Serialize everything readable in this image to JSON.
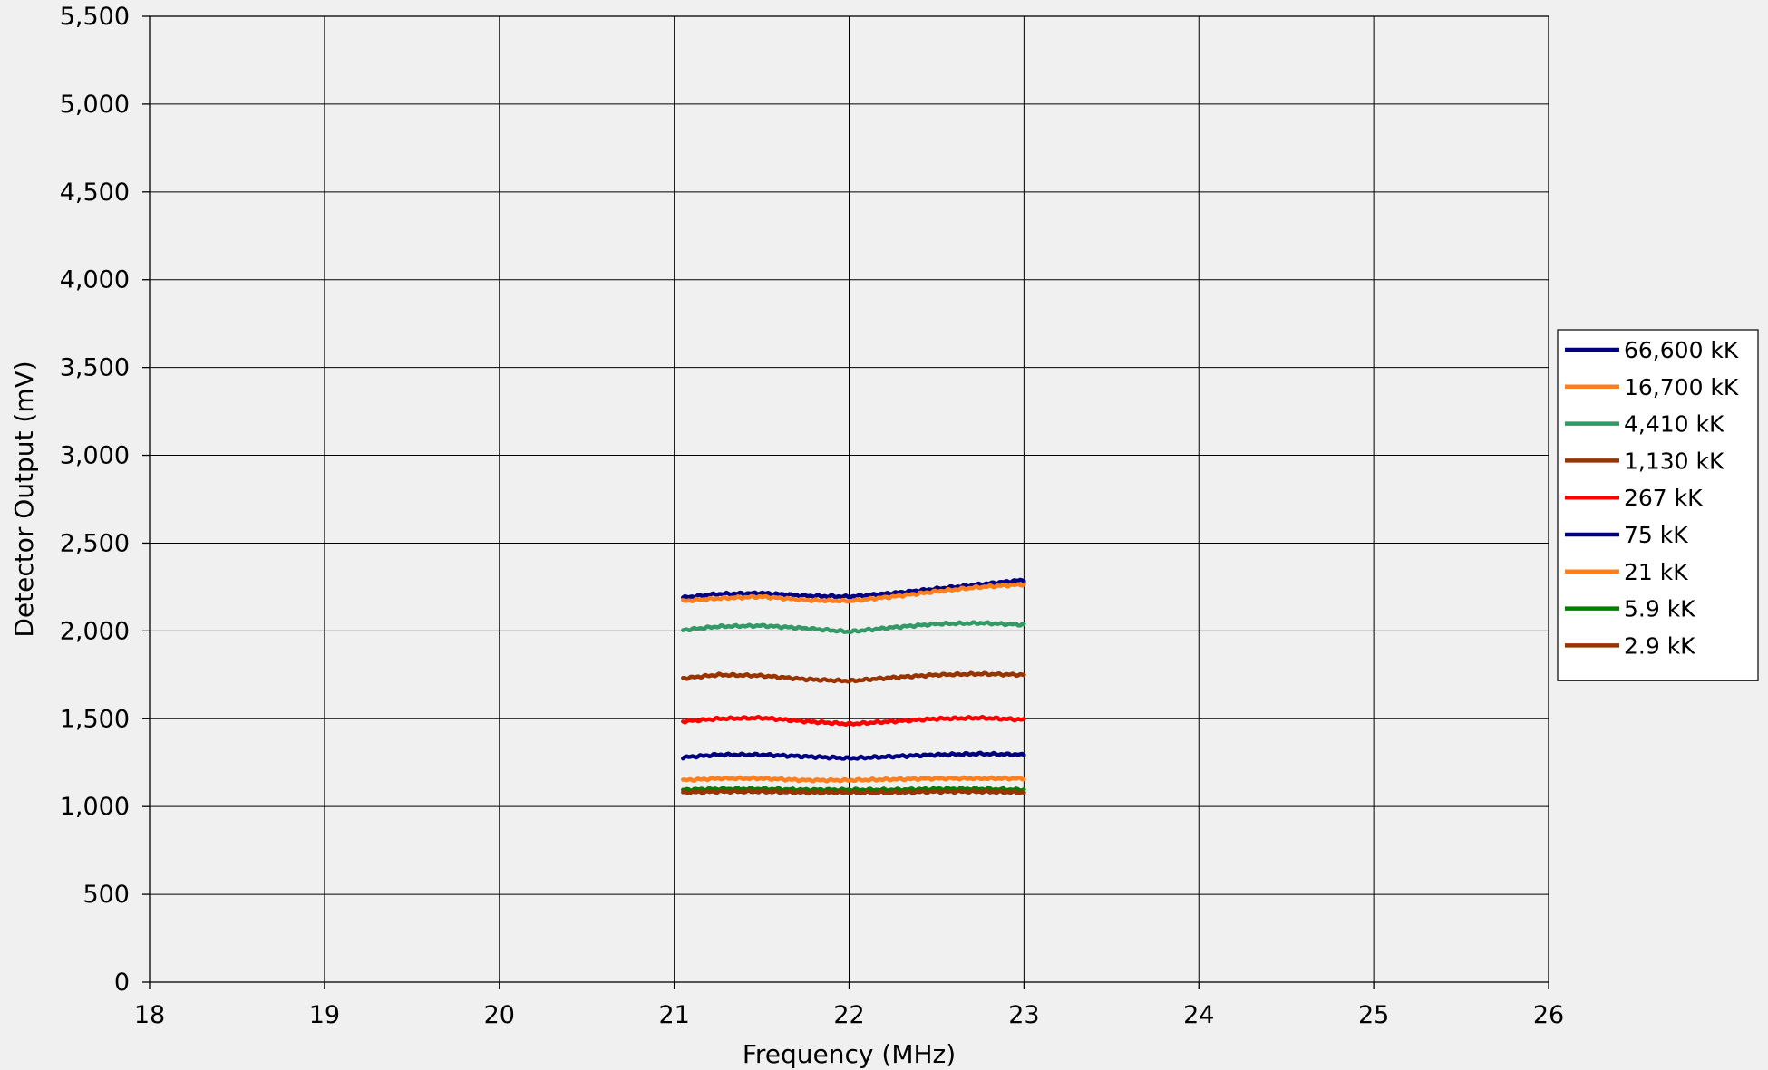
{
  "chart_data": {
    "type": "line",
    "title": "",
    "xlabel": "Frequency (MHz)",
    "ylabel": "Detector Output (mV)",
    "xlim": [
      18,
      26
    ],
    "ylim": [
      0,
      5500
    ],
    "x_ticks": [
      18,
      19,
      20,
      21,
      22,
      23,
      24,
      25,
      26
    ],
    "x_tick_labels": [
      "18",
      "19",
      "20",
      "21",
      "22",
      "23",
      "24",
      "25",
      "26"
    ],
    "y_ticks": [
      0,
      500,
      1000,
      1500,
      2000,
      2500,
      3000,
      3500,
      4000,
      4500,
      5000,
      5500
    ],
    "y_tick_labels": [
      "0",
      "500",
      "1,000",
      "1,500",
      "2,000",
      "2,500",
      "3,000",
      "3,500",
      "4,000",
      "4,500",
      "5,000",
      "5,500"
    ],
    "grid": true,
    "legend_position": "right",
    "background_color": "#f0f0f0",
    "x": [
      21.05,
      21.25,
      21.5,
      21.75,
      22.0,
      22.25,
      22.5,
      22.75,
      23.0
    ],
    "series": [
      {
        "name": "66,600 kK",
        "color": "#000080",
        "values": [
          2190,
          2210,
          2215,
          2200,
          2195,
          2215,
          2240,
          2265,
          2290
        ]
      },
      {
        "name": "16,700 kK",
        "color": "#ff7f1f",
        "values": [
          2170,
          2185,
          2195,
          2175,
          2170,
          2195,
          2225,
          2250,
          2265
        ]
      },
      {
        "name": "4,410 kK",
        "color": "#339966",
        "values": [
          2005,
          2025,
          2030,
          2015,
          1995,
          2020,
          2040,
          2045,
          2035
        ]
      },
      {
        "name": "1,130 kK",
        "color": "#993300",
        "values": [
          1730,
          1750,
          1745,
          1725,
          1715,
          1735,
          1750,
          1755,
          1750
        ]
      },
      {
        "name": "267 kK",
        "color": "#ff0000",
        "values": [
          1485,
          1500,
          1505,
          1485,
          1470,
          1485,
          1500,
          1505,
          1495
        ]
      },
      {
        "name": "75 kK",
        "color": "#000080",
        "values": [
          1280,
          1295,
          1295,
          1285,
          1275,
          1285,
          1295,
          1300,
          1295
        ]
      },
      {
        "name": "21 kK",
        "color": "#ff7f1f",
        "values": [
          1150,
          1160,
          1160,
          1150,
          1150,
          1155,
          1160,
          1160,
          1160
        ]
      },
      {
        "name": "5.9 kK",
        "color": "#008000",
        "values": [
          1095,
          1100,
          1100,
          1095,
          1095,
          1095,
          1100,
          1100,
          1095
        ]
      },
      {
        "name": "2.9 kK",
        "color": "#993300",
        "values": [
          1080,
          1085,
          1085,
          1080,
          1080,
          1080,
          1085,
          1085,
          1080
        ]
      }
    ]
  }
}
